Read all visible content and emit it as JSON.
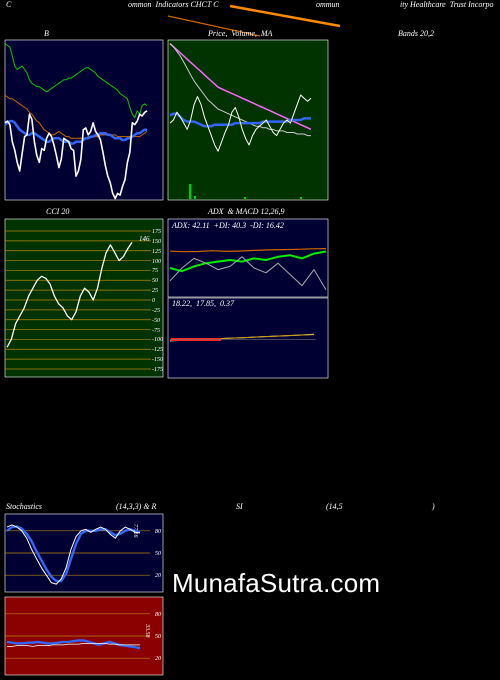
{
  "header": {
    "left": "C",
    "t1": "ommon  Indicators CHCT C",
    "t2": "ommun",
    "t3": "ity Healthcare  Trust Incorpo"
  },
  "bb_title": {
    "left": "B",
    "mid": "Price,  Volume,  MA",
    "right": "Bands 20,2"
  },
  "cci_title": "CCI 20",
  "adx_title": "ADX  & MACD 12,26,9",
  "adx_values": "ADX: 42.11  +DI: 40.3  -DI: 16.42",
  "macd_values": "18.22,  17.85,  0.37",
  "stoch_title": {
    "a": "Stochastics",
    "b": "(14,3,3) & R",
    "c": "SI",
    "d": "(14,5",
    "e": ")"
  },
  "cci_value": "146",
  "stoch_value": "77.16",
  "rsi_value": "33.58",
  "watermark": "MunafaSutra.com",
  "colors": {
    "panel_bg": "#000033",
    "ma_panel_bg": "#003300",
    "cci_bg": "#003300",
    "rsi_bg": "#8b0000",
    "white": "#ffffff",
    "green": "#00cc00",
    "blue": "#3366ff",
    "orange": "#cc6600",
    "gold": "#b8860b"
  },
  "chart_data": [
    {
      "type": "line",
      "name": "Bollinger Bands",
      "series": [
        {
          "values": [
            99,
            98,
            97,
            92,
            86,
            84,
            85,
            86,
            84,
            82,
            78,
            76,
            75,
            74,
            74,
            73,
            72,
            71,
            72,
            73,
            74,
            75,
            76,
            77,
            78,
            78,
            79,
            79,
            80,
            81,
            82,
            83,
            84,
            85,
            85,
            84,
            83,
            82,
            80,
            79,
            78,
            77,
            76,
            75,
            74,
            73,
            72,
            70,
            69,
            68,
            67,
            62,
            58,
            56,
            60,
            58,
            63,
            64,
            63
          ]
        },
        {
          "values": [
            69,
            68,
            67,
            67,
            66,
            65,
            64,
            63,
            62,
            61,
            59,
            58,
            56,
            54,
            53,
            51,
            49,
            48,
            47,
            46,
            46,
            47,
            48,
            47,
            46,
            45,
            45,
            44,
            44,
            44,
            44,
            44,
            44,
            44,
            45,
            45,
            45,
            45,
            45,
            46,
            46,
            46,
            46,
            46,
            46,
            46,
            45,
            45,
            45,
            45,
            45,
            45,
            45,
            45,
            45,
            45,
            46,
            47,
            48
          ]
        },
        {
          "values": [
            52,
            53,
            54,
            54,
            53,
            51,
            49,
            48,
            47,
            46,
            46,
            47,
            47,
            46,
            45,
            44,
            43,
            42,
            42,
            43,
            44,
            44,
            44,
            43,
            42,
            42,
            42,
            41,
            41,
            42,
            42,
            42,
            43,
            44,
            44,
            45,
            45,
            46,
            46,
            47,
            47,
            47,
            46,
            46,
            45,
            44,
            44,
            44,
            43,
            43,
            44,
            44,
            45,
            46,
            47,
            47,
            48,
            49,
            49
          ]
        },
        {
          "values": [
            53,
            54,
            52,
            42,
            37,
            30,
            25,
            35,
            45,
            46,
            58,
            55,
            42,
            34,
            30,
            38,
            37,
            44,
            47,
            45,
            40,
            34,
            27,
            32,
            44,
            43,
            42,
            38,
            37,
            22,
            25,
            32,
            49,
            50,
            46,
            48,
            53,
            48,
            46,
            43,
            36,
            28,
            22,
            18,
            12,
            9,
            12,
            11,
            16,
            20,
            30,
            36,
            53,
            52,
            54,
            58,
            57,
            59,
            60
          ]
        }
      ]
    },
    {
      "type": "line",
      "name": "Price MA",
      "series": [
        {
          "values": [
            99,
            97,
            95,
            93,
            91,
            89,
            87,
            85,
            83,
            81,
            79,
            77,
            75,
            73,
            71,
            70,
            69,
            68,
            67,
            66,
            65,
            64,
            63,
            62,
            61,
            60,
            59,
            58,
            57,
            56,
            55,
            54,
            53,
            52,
            51,
            50,
            49,
            48,
            47,
            46,
            45,
            44
          ]
        },
        {
          "values": [
            99,
            97,
            94,
            91,
            87,
            83,
            79,
            75,
            72,
            69,
            66,
            63,
            61,
            59,
            57,
            56,
            55,
            54,
            53,
            52,
            51,
            50,
            49,
            48,
            47,
            46,
            46,
            45,
            45,
            44,
            44,
            43,
            43,
            43,
            42,
            42,
            42,
            41,
            41,
            41,
            40,
            40
          ]
        },
        {
          "values": [
            53,
            54,
            54,
            52,
            50,
            49,
            49,
            49,
            48,
            47,
            46,
            46,
            46,
            47,
            47,
            47,
            47,
            47,
            47,
            48,
            48,
            48,
            48,
            48,
            48,
            48,
            48,
            49,
            49,
            49,
            49,
            49,
            49,
            49,
            49,
            50,
            50,
            50,
            50,
            51,
            51,
            51
          ]
        },
        {
          "values": [
            48,
            50,
            55,
            52,
            48,
            44,
            50,
            60,
            65,
            60,
            52,
            46,
            40,
            34,
            30,
            36,
            42,
            47,
            55,
            58,
            52,
            44,
            38,
            34,
            40,
            44,
            46,
            48,
            50,
            46,
            42,
            40,
            44,
            48,
            50,
            48,
            54,
            60,
            66,
            64,
            62,
            64
          ]
        }
      ]
    },
    {
      "type": "line",
      "name": "CCI 20",
      "yticks": [
        175,
        150,
        125,
        100,
        75,
        50,
        25,
        0,
        -25,
        -50,
        -75,
        -100,
        -125,
        -150,
        -175
      ],
      "ylim": [
        -175,
        175
      ],
      "values": [
        -120,
        -100,
        -60,
        -40,
        -20,
        10,
        30,
        50,
        60,
        55,
        40,
        10,
        -10,
        -20,
        -40,
        -50,
        -30,
        10,
        30,
        20,
        0,
        30,
        80,
        120,
        140,
        120,
        100,
        110,
        130,
        146
      ]
    },
    {
      "type": "line",
      "name": "ADX",
      "series": [
        {
          "name": "ADX",
          "values": [
            40.5,
            40.2,
            40.3,
            40.8,
            40.4,
            40.6,
            41.0,
            41.3,
            41.5,
            41.7,
            42.0,
            42.11
          ]
        },
        {
          "name": "+DI",
          "values": [
            30,
            28,
            31,
            33,
            34,
            35,
            34,
            36,
            35,
            37,
            38,
            36,
            39,
            40.3
          ]
        },
        {
          "name": "-DI",
          "values": [
            22,
            30,
            36,
            33,
            29,
            31,
            37,
            30,
            27,
            33,
            26,
            19,
            29,
            16.42
          ]
        }
      ]
    },
    {
      "type": "line",
      "name": "MACD",
      "series": [
        {
          "name": "MACD",
          "values": [
            8,
            9,
            10,
            11,
            12,
            13,
            14,
            15,
            16,
            17,
            18.22
          ]
        },
        {
          "name": "Signal",
          "values": [
            8.5,
            9,
            10,
            11,
            12,
            13,
            14,
            15,
            16,
            17,
            17.85
          ]
        },
        {
          "name": "Histogram",
          "values": [
            -0.5,
            -0.4,
            -0.3,
            -0.2,
            -0.1,
            0,
            0.1,
            0.2,
            0.3,
            0.35,
            0.37
          ]
        }
      ]
    },
    {
      "type": "line",
      "name": "Stochastics",
      "yticks": [
        80,
        50,
        20
      ],
      "ylim": [
        0,
        100
      ],
      "series": [
        {
          "values": [
            85,
            88,
            85,
            80,
            70,
            55,
            42,
            30,
            20,
            10,
            8,
            15,
            30,
            55,
            72,
            80,
            82,
            78,
            82,
            85,
            82,
            75,
            70,
            80,
            85,
            82,
            78,
            77.16
          ]
        },
        {
          "values": [
            80,
            85,
            86,
            83,
            76,
            66,
            52,
            40,
            28,
            18,
            12,
            12,
            22,
            42,
            62,
            76,
            80,
            80,
            80,
            82,
            82,
            78,
            74,
            76,
            80,
            82,
            80,
            78
          ]
        }
      ]
    },
    {
      "type": "line",
      "name": "RSI",
      "yticks": [
        80,
        50,
        20
      ],
      "ylim": [
        0,
        100
      ],
      "series": [
        {
          "values": [
            42,
            41,
            40,
            40,
            41,
            41,
            42,
            41,
            40,
            40,
            41,
            42,
            42,
            43,
            44,
            44,
            42,
            40,
            38,
            40,
            42,
            40,
            38,
            37,
            36,
            35,
            33.58
          ]
        },
        {
          "values": [
            36,
            36,
            37,
            37,
            37,
            36,
            37,
            37,
            37,
            38,
            38,
            38,
            39,
            39,
            39,
            40,
            40,
            40,
            40,
            40,
            39,
            39,
            38,
            38,
            38,
            38,
            38
          ]
        }
      ]
    }
  ]
}
